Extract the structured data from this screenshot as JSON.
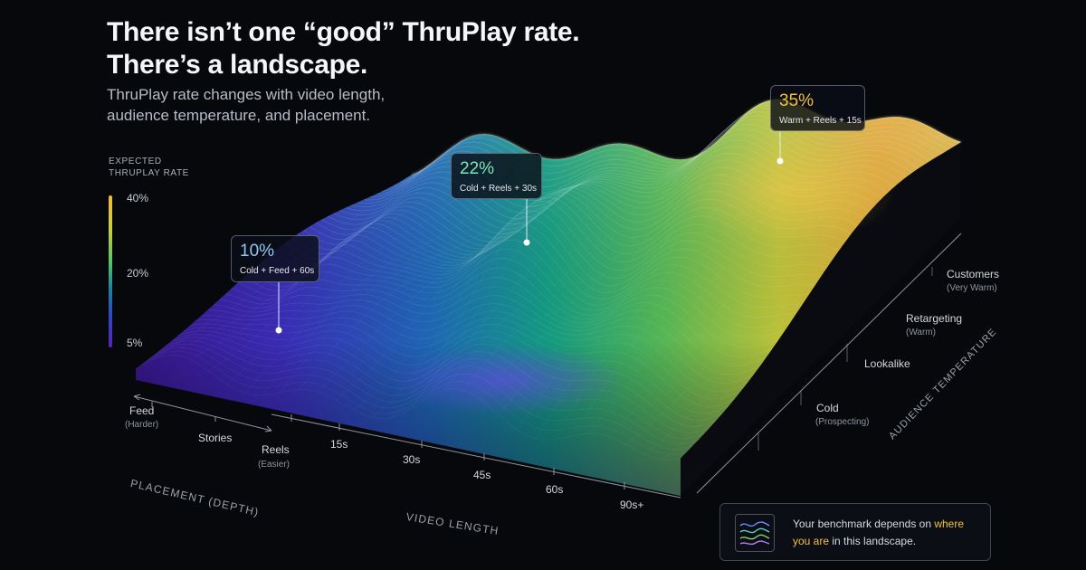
{
  "title": {
    "line1": "There isn’t one “good” ThruPlay rate.",
    "line2": "There’s a landscape."
  },
  "subtitle": {
    "line1": "ThruPlay rate changes with video length,",
    "line2": "audience temperature, and placement."
  },
  "legend": {
    "title_line1": "EXPECTED",
    "title_line2": "THRUPLAY RATE",
    "ticks": [
      "40%",
      "20%",
      "5%"
    ],
    "colors": [
      "#f2b83a",
      "#52c26a",
      "#2d47c4",
      "#5a22b6"
    ]
  },
  "callouts": [
    {
      "value": "10%",
      "label": "Cold + Feed + 60s",
      "color": "#8ec9f5"
    },
    {
      "value": "22%",
      "label": "Cold + Reels + 30s",
      "color": "#7ee6b2"
    },
    {
      "value": "35%",
      "label": "Warm + Reels + 15s",
      "color": "#f3c03c"
    }
  ],
  "placement_axis": {
    "title": "PLACEMENT (DEPTH)",
    "items": [
      {
        "label": "Feed",
        "sub": "(Harder)"
      },
      {
        "label": "Stories",
        "sub": ""
      },
      {
        "label": "Reels",
        "sub": "(Easier)"
      }
    ]
  },
  "video_axis": {
    "title": "VIDEO LENGTH",
    "ticks": [
      "15s",
      "30s",
      "45s",
      "60s",
      "90s+"
    ]
  },
  "audience_axis": {
    "title": "AUDIENCE TEMPERATURE",
    "items": [
      {
        "label": "Cold",
        "sub": "(Prospecting)"
      },
      {
        "label": "Lookalike",
        "sub": ""
      },
      {
        "label": "Retargeting",
        "sub": "(Warm)"
      },
      {
        "label": "Customers",
        "sub": "(Very Warm)"
      }
    ]
  },
  "note": {
    "before": "Your benchmark depends on ",
    "highlight1": "where",
    "middle": " ",
    "highlight2": "you are",
    "after": " in this landscape."
  }
}
